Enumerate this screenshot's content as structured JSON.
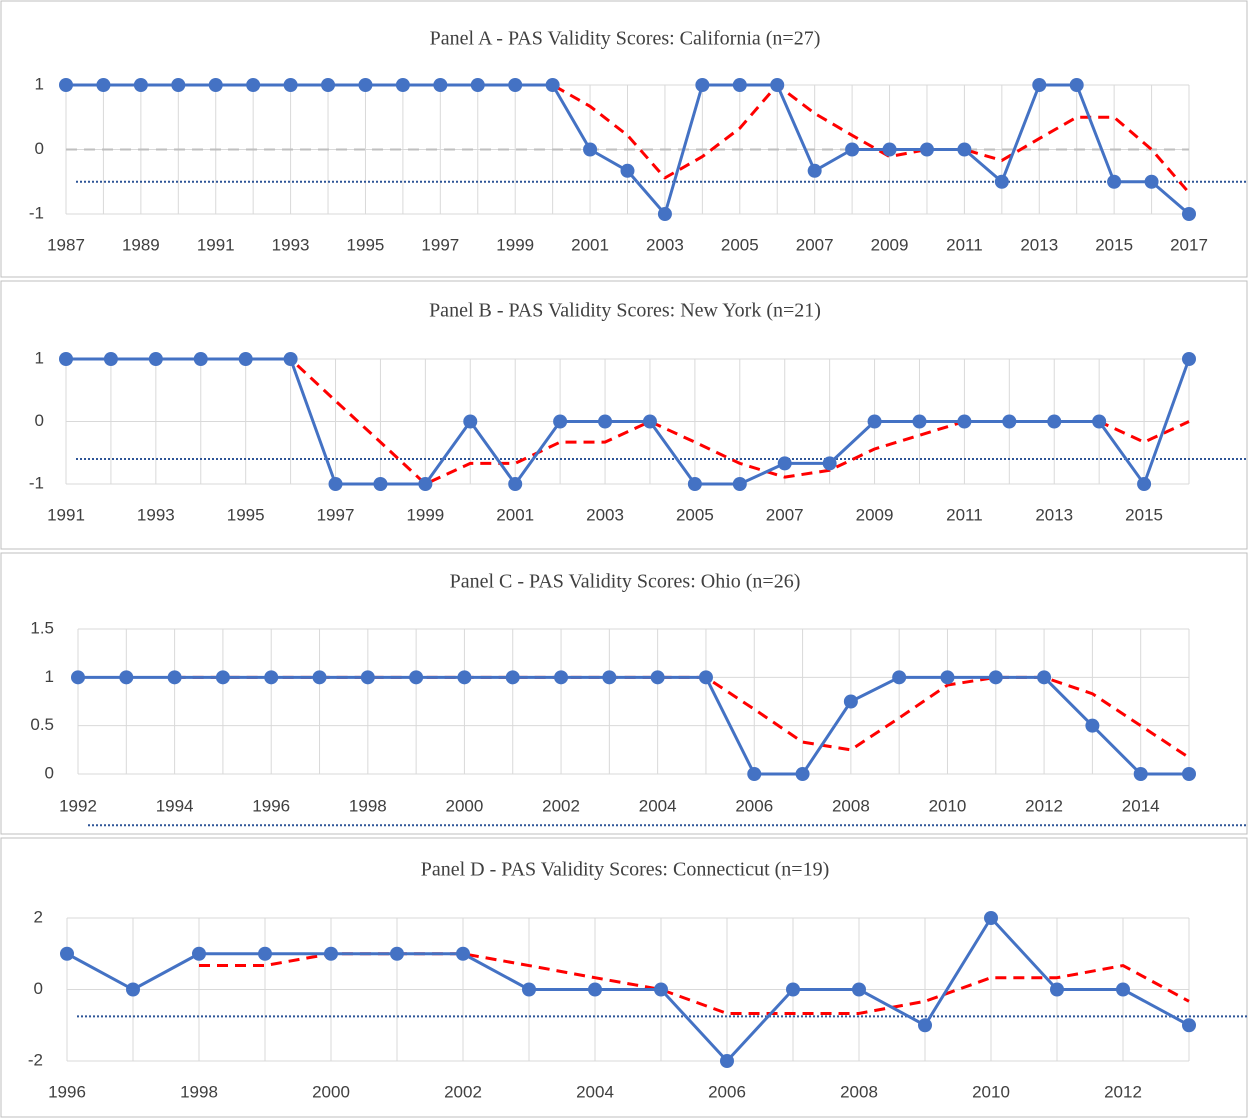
{
  "chart_data": [
    {
      "type": "line",
      "title": "Panel A - PAS Validity Scores: California (n=27)",
      "x": [
        1987,
        1988,
        1989,
        1990,
        1991,
        1992,
        1993,
        1994,
        1995,
        1996,
        1997,
        1998,
        1999,
        2000,
        2001,
        2002,
        2003,
        2004,
        2005,
        2006,
        2007,
        2008,
        2009,
        2010,
        2011,
        2012,
        2013,
        2014,
        2015,
        2016,
        2017
      ],
      "xlim": [
        1987,
        2017
      ],
      "xticks": [
        1987,
        1989,
        1991,
        1993,
        1995,
        1997,
        1999,
        2001,
        2003,
        2005,
        2007,
        2009,
        2011,
        2013,
        2015,
        2017
      ],
      "ylim": [
        -1,
        1
      ],
      "yticks": [
        -1,
        0,
        1
      ],
      "grid": true,
      "series": [
        {
          "color": "#4472c4",
          "style": "solid",
          "marker": "circle",
          "values": [
            1,
            1,
            1,
            1,
            1,
            1,
            1,
            1,
            1,
            1,
            1,
            1,
            1,
            1,
            0,
            -0.33,
            -1,
            1,
            1,
            1,
            -0.33,
            0,
            0,
            0,
            0,
            -0.5,
            1,
            1,
            -0.5,
            -0.5,
            -1
          ]
        },
        {
          "color": "#ff0000",
          "style": "dashed",
          "values": [
            null,
            null,
            1,
            1,
            1,
            1,
            1,
            1,
            1,
            1,
            1,
            1,
            1,
            1,
            0.67,
            0.22,
            -0.44,
            -0.11,
            0.33,
            1,
            0.56,
            0.22,
            -0.11,
            0,
            0,
            -0.17,
            0.17,
            0.5,
            0.5,
            0,
            -0.67
          ]
        }
      ],
      "reference_lines": [
        {
          "value": 0,
          "color": "#bfbfbf",
          "style": "dashed"
        },
        {
          "value": -0.5,
          "color": "#2e5597",
          "style": "dotted"
        }
      ]
    },
    {
      "type": "line",
      "title": "Panel B - PAS Validity Scores: New York (n=21)",
      "x": [
        1991,
        1992,
        1993,
        1994,
        1995,
        1996,
        1997,
        1998,
        1999,
        2000,
        2001,
        2002,
        2003,
        2004,
        2005,
        2006,
        2007,
        2008,
        2009,
        2010,
        2011,
        2012,
        2013,
        2014,
        2015,
        2016
      ],
      "xlim": [
        1991,
        2016
      ],
      "xticks": [
        1991,
        1993,
        1995,
        1997,
        1999,
        2001,
        2003,
        2005,
        2007,
        2009,
        2011,
        2013,
        2015
      ],
      "ylim": [
        -1,
        1
      ],
      "yticks": [
        -1,
        0,
        1
      ],
      "grid": true,
      "series": [
        {
          "color": "#4472c4",
          "style": "solid",
          "marker": "circle",
          "values": [
            1,
            1,
            1,
            1,
            1,
            1,
            -1,
            -1,
            -1,
            0,
            -1,
            0,
            0,
            0,
            -1,
            -1,
            -0.67,
            -0.67,
            0,
            0,
            0,
            0,
            0,
            0,
            -1,
            1
          ]
        },
        {
          "color": "#ff0000",
          "style": "dashed",
          "values": [
            null,
            null,
            1,
            1,
            1,
            1,
            0.33,
            -0.33,
            -1,
            -0.67,
            -0.67,
            -0.33,
            -0.33,
            0,
            -0.33,
            -0.67,
            -0.89,
            -0.78,
            -0.44,
            -0.22,
            0,
            0,
            0,
            0,
            -0.33,
            0
          ]
        }
      ],
      "reference_lines": [
        {
          "value": -0.6,
          "color": "#2e5597",
          "style": "dotted"
        }
      ]
    },
    {
      "type": "line",
      "title": "Panel C - PAS Validity Scores: Ohio (n=26)",
      "x": [
        1992,
        1993,
        1994,
        1995,
        1996,
        1997,
        1998,
        1999,
        2000,
        2001,
        2002,
        2003,
        2004,
        2005,
        2006,
        2007,
        2008,
        2009,
        2010,
        2011,
        2012,
        2013,
        2014,
        2015
      ],
      "xlim": [
        1992,
        2015
      ],
      "xticks": [
        1992,
        1994,
        1996,
        1998,
        2000,
        2002,
        2004,
        2006,
        2008,
        2010,
        2012,
        2014
      ],
      "ylim": [
        0,
        1.5
      ],
      "yticks": [
        0,
        0.5,
        1,
        1.5
      ],
      "grid": true,
      "series": [
        {
          "color": "#4472c4",
          "style": "solid",
          "marker": "circle",
          "values": [
            1,
            1,
            1,
            1,
            1,
            1,
            1,
            1,
            1,
            1,
            1,
            1,
            1,
            1,
            0,
            0,
            0.75,
            1,
            1,
            1,
            1,
            0.5,
            0,
            0
          ]
        },
        {
          "color": "#ff0000",
          "style": "dashed",
          "values": [
            null,
            null,
            1,
            1,
            1,
            1,
            1,
            1,
            1,
            1,
            1,
            1,
            1,
            1,
            0.67,
            0.33,
            0.25,
            0.58,
            0.92,
            1,
            1,
            0.83,
            0.5,
            0.17
          ]
        }
      ],
      "reference_lines": [
        {
          "value": -0.53,
          "color": "#2e5597",
          "style": "dotted"
        }
      ]
    },
    {
      "type": "line",
      "title": "Panel D - PAS Validity Scores: Connecticut (n=19)",
      "x": [
        1996,
        1997,
        1998,
        1999,
        2000,
        2001,
        2002,
        2003,
        2004,
        2005,
        2006,
        2007,
        2008,
        2009,
        2010,
        2011,
        2012,
        2013
      ],
      "xlim": [
        1996,
        2013
      ],
      "xticks": [
        1996,
        1998,
        2000,
        2002,
        2004,
        2006,
        2008,
        2010,
        2012
      ],
      "ylim": [
        -2,
        2
      ],
      "yticks": [
        -2,
        0,
        2
      ],
      "grid": true,
      "series": [
        {
          "color": "#4472c4",
          "style": "solid",
          "marker": "circle",
          "values": [
            1,
            0,
            1,
            1,
            1,
            1,
            1,
            0,
            0,
            0,
            -2,
            0,
            0,
            -1,
            2,
            0,
            0,
            -1
          ]
        },
        {
          "color": "#ff0000",
          "style": "dashed",
          "values": [
            null,
            null,
            0.67,
            0.67,
            1,
            1,
            1,
            0.67,
            0.33,
            0,
            -0.67,
            -0.67,
            -0.67,
            -0.33,
            0.33,
            0.33,
            0.67,
            -0.33
          ]
        }
      ],
      "reference_lines": [
        {
          "value": -0.75,
          "color": "#2e5597",
          "style": "dotted"
        }
      ]
    }
  ]
}
